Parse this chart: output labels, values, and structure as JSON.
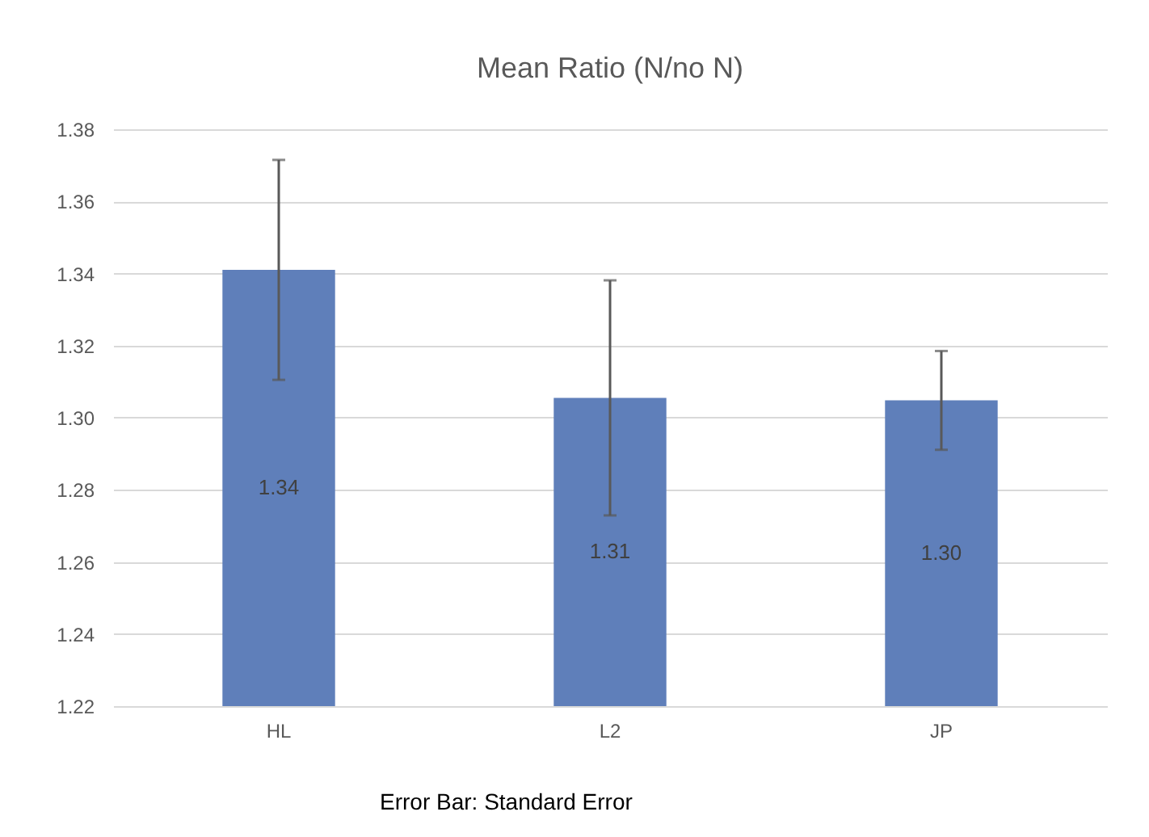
{
  "chart_data": {
    "type": "bar",
    "title": "Mean Ratio (N/no N)",
    "categories": [
      "HL",
      "L2",
      "JP"
    ],
    "values": [
      1.341,
      1.3055,
      1.3048
    ],
    "errors": [
      0.0305,
      0.0326,
      0.0137
    ],
    "value_labels": [
      "1.34",
      "1.31",
      "1.30"
    ],
    "color": "#5f7fba",
    "ylim": [
      1.22,
      1.38
    ],
    "yticks": [
      1.22,
      1.24,
      1.26,
      1.28,
      {
        "value": 1.3,
        "label": "1.30"
      },
      1.32,
      1.34,
      1.36,
      1.38
    ],
    "grid": "y",
    "annotations": [
      "Error Bar: Standard Error"
    ]
  }
}
